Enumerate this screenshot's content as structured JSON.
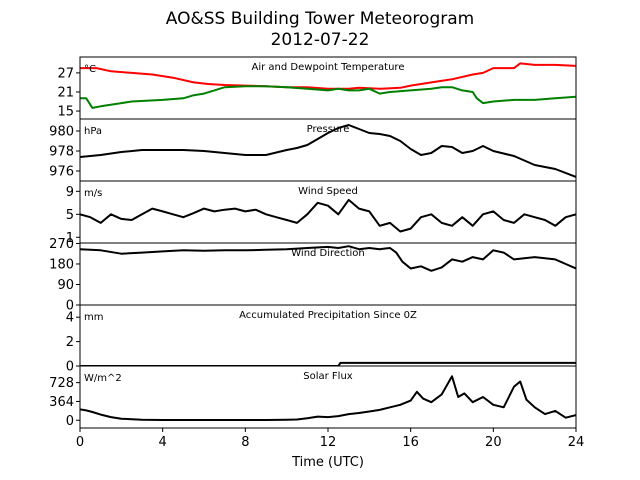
{
  "figure": {
    "title_line1": "AO&SS Building Tower Meteorogram",
    "title_line2": "2012-07-22",
    "xlabel": "Time (UTC)",
    "xlim": [
      0,
      24
    ],
    "xticks": [
      0,
      4,
      8,
      12,
      16,
      20,
      24
    ]
  },
  "chart_data": [
    {
      "type": "line",
      "title": "Air and Dewpoint Temperature",
      "unit": "°C",
      "ylim": [
        12.5,
        32
      ],
      "yticks": [
        15,
        21,
        27
      ],
      "series": [
        {
          "color": "#ff0000",
          "x": [
            0,
            0.8,
            1.5,
            2.5,
            3.5,
            4.5,
            5.5,
            6.2,
            7,
            8,
            9,
            10,
            11,
            12,
            13,
            13.5,
            14.5,
            15.5,
            16,
            17,
            18,
            19,
            19.5,
            20,
            20.5,
            21,
            21.3,
            22,
            23,
            24
          ],
          "values": [
            28.5,
            28.5,
            27.5,
            27,
            26.5,
            25.5,
            24,
            23.5,
            23.2,
            23,
            22.8,
            22.5,
            22.5,
            22,
            22,
            22.3,
            22,
            22.3,
            23,
            24,
            25,
            26.5,
            27,
            28.5,
            28.5,
            28.5,
            30,
            29.5,
            29.5,
            29.2
          ]
        },
        {
          "color": "#008000",
          "x": [
            0,
            0.3,
            0.6,
            1,
            2,
            2.5,
            4,
            5,
            5.5,
            6,
            6.5,
            7,
            8,
            9,
            10,
            11,
            12,
            12.5,
            13,
            13.5,
            14,
            14.5,
            15,
            16,
            17,
            17.5,
            18,
            18.5,
            19,
            19.2,
            19.5,
            20,
            21,
            22,
            23,
            24
          ],
          "values": [
            19,
            19,
            16,
            16.5,
            17.5,
            18,
            18.5,
            19,
            20,
            20.5,
            21.5,
            22.5,
            22.8,
            22.8,
            22.5,
            22,
            21.5,
            22,
            21.5,
            21.5,
            22,
            20.5,
            21,
            21.5,
            22,
            22.5,
            22.5,
            21.5,
            21,
            19,
            17.5,
            18,
            18.5,
            18.5,
            19,
            19.5
          ]
        }
      ]
    },
    {
      "type": "line",
      "title": "Pressure",
      "unit": "hPa",
      "ylim": [
        975,
        981.2
      ],
      "yticks": [
        976,
        978,
        980
      ],
      "series": [
        {
          "color": "#000000",
          "x": [
            0,
            1,
            2,
            3,
            4,
            5,
            6,
            7,
            8,
            9,
            10,
            10.5,
            11,
            11.5,
            12,
            12.5,
            13,
            13.5,
            14,
            14.5,
            15,
            15.5,
            16,
            16.5,
            17,
            17.5,
            18,
            18.5,
            19,
            19.5,
            20,
            21,
            22,
            23,
            24
          ],
          "values": [
            977.4,
            977.6,
            977.9,
            978.1,
            978.1,
            978.1,
            978.0,
            977.8,
            977.6,
            977.6,
            978.1,
            978.3,
            978.6,
            979.2,
            979.8,
            980.3,
            980.6,
            980.2,
            979.8,
            979.7,
            979.5,
            979.0,
            978.2,
            977.6,
            977.8,
            978.5,
            978.4,
            977.8,
            978.0,
            978.5,
            978.0,
            977.5,
            976.6,
            976.2,
            975.4
          ]
        }
      ]
    },
    {
      "type": "line",
      "title": "Wind Speed",
      "unit": "m/s",
      "ylim": [
        0,
        10.8
      ],
      "yticks": [
        1,
        5,
        9
      ],
      "series": [
        {
          "color": "#000000",
          "x": [
            0,
            0.5,
            1,
            1.5,
            2,
            2.5,
            3,
            3.5,
            4,
            4.5,
            5,
            5.5,
            6,
            6.5,
            7,
            7.5,
            8,
            8.5,
            9,
            9.5,
            10,
            10.5,
            11,
            11.5,
            12,
            12.5,
            13,
            13.5,
            14,
            14.5,
            15,
            15.5,
            16,
            16.5,
            17,
            17.5,
            18,
            18.5,
            19,
            19.5,
            20,
            20.5,
            21,
            21.5,
            22,
            22.5,
            23,
            23.5,
            24
          ],
          "values": [
            5,
            4.5,
            3.5,
            5,
            4.2,
            4,
            5,
            6,
            5.5,
            5,
            4.5,
            5.2,
            6,
            5.5,
            5.8,
            6,
            5.5,
            5.8,
            5,
            4.5,
            4,
            3.5,
            5,
            7,
            6.5,
            5,
            7.5,
            6,
            5.5,
            3,
            3.5,
            2,
            2.5,
            4.5,
            5,
            3.5,
            3,
            4.5,
            3,
            5,
            5.5,
            4,
            3.5,
            5,
            4.5,
            4,
            3,
            4.5,
            5
          ]
        }
      ]
    },
    {
      "type": "line",
      "title": "Wind Direction",
      "unit": "",
      "ylim": [
        0,
        272
      ],
      "yticks": [
        0,
        90,
        180,
        270
      ],
      "series": [
        {
          "color": "#000000",
          "x": [
            0,
            1,
            2,
            3,
            4,
            5,
            6,
            7,
            8,
            9,
            10,
            11,
            12,
            12.5,
            13,
            13.5,
            14,
            14.5,
            15,
            15.3,
            15.6,
            16,
            16.5,
            17,
            17.5,
            18,
            18.5,
            19,
            19.5,
            20,
            20.5,
            21,
            22,
            23,
            23.5,
            24
          ],
          "values": [
            245,
            240,
            225,
            230,
            235,
            240,
            238,
            240,
            240,
            242,
            245,
            250,
            255,
            250,
            258,
            245,
            250,
            245,
            250,
            230,
            190,
            160,
            170,
            150,
            165,
            200,
            190,
            210,
            200,
            240,
            230,
            200,
            210,
            200,
            180,
            160
          ]
        }
      ]
    },
    {
      "type": "line",
      "title": "Accumulated Precipitation Since 0Z",
      "unit": "mm",
      "ylim": [
        0,
        5
      ],
      "yticks": [
        0,
        2,
        4
      ],
      "series": [
        {
          "color": "#000000",
          "x": [
            0,
            12.5,
            12.6,
            24
          ],
          "values": [
            0,
            0,
            0.25,
            0.25
          ]
        }
      ]
    },
    {
      "type": "line",
      "title": "Solar Flux",
      "unit": "W/m^2",
      "ylim": [
        -150,
        1050
      ],
      "yticks": [
        0,
        364,
        728
      ],
      "series": [
        {
          "color": "#000000",
          "x": [
            0,
            0.3,
            0.6,
            1,
            1.5,
            2,
            3,
            4,
            5,
            6,
            7,
            8,
            9,
            10,
            10.5,
            11,
            11.5,
            12,
            12.5,
            13,
            13.5,
            14,
            14.5,
            15,
            15.5,
            16,
            16.3,
            16.6,
            17,
            17.5,
            18,
            18.3,
            18.6,
            19,
            19.5,
            20,
            20.5,
            21,
            21.3,
            21.6,
            22,
            22.5,
            23,
            23.5,
            24
          ],
          "values": [
            210,
            190,
            160,
            110,
            60,
            30,
            10,
            5,
            5,
            5,
            5,
            5,
            5,
            8,
            15,
            40,
            70,
            60,
            80,
            120,
            140,
            170,
            200,
            250,
            300,
            380,
            550,
            420,
            350,
            500,
            850,
            450,
            520,
            350,
            450,
            300,
            250,
            650,
            750,
            400,
            250,
            120,
            180,
            50,
            100
          ]
        }
      ]
    }
  ]
}
